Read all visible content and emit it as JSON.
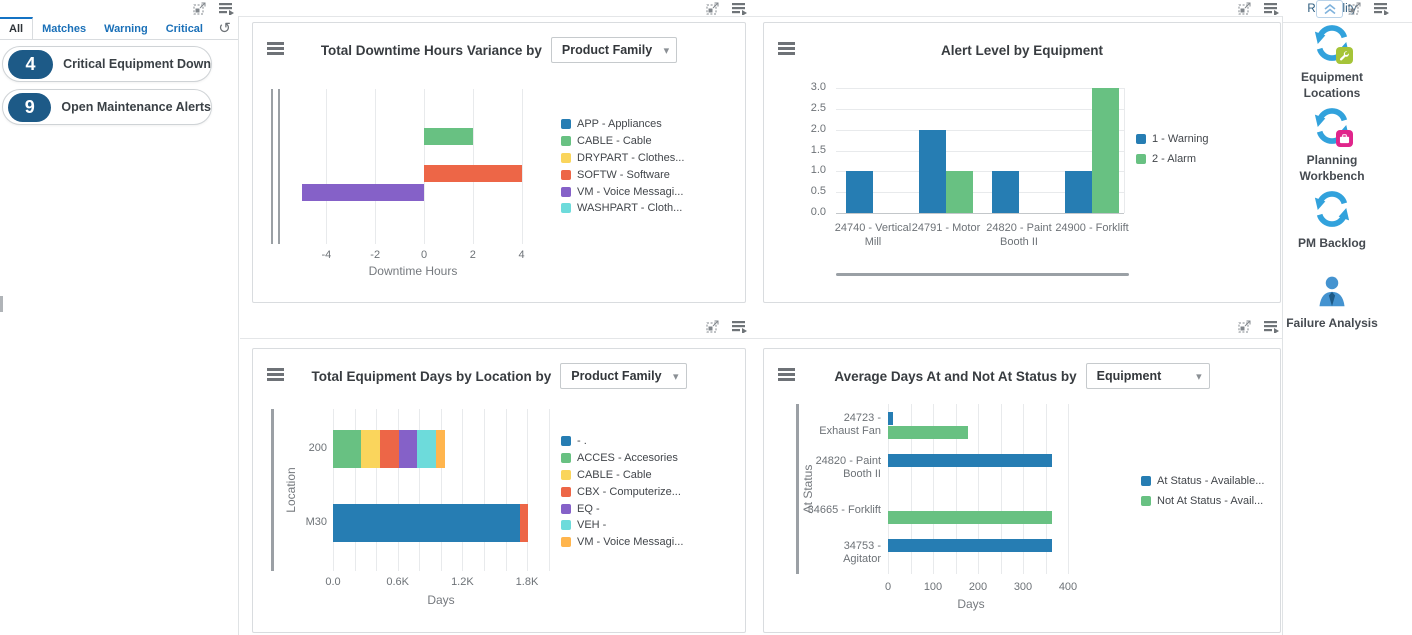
{
  "left_panel": {
    "tabs": [
      "All",
      "Matches",
      "Warning",
      "Critical"
    ],
    "active_tab": "All",
    "cards": [
      {
        "count": "4",
        "label": "Critical Equipment Down"
      },
      {
        "count": "9",
        "label": "Open Maintenance Alerts"
      }
    ]
  },
  "sidebar": {
    "title": "Reliability",
    "items": [
      {
        "label": "Equipment Locations",
        "icon": "cycle-wrench-icon"
      },
      {
        "label": "Planning Workbench",
        "icon": "cycle-briefcase-icon"
      },
      {
        "label": "PM Backlog",
        "icon": "cycle-icon"
      },
      {
        "label": "Failure Analysis",
        "icon": "person-icon"
      }
    ]
  },
  "colors": {
    "accent_blue": "#1473c4",
    "badge_navy": "#1d5a87",
    "link_blue": "#1a70b8",
    "series_blue": "#267db3",
    "series_green": "#68c182"
  },
  "chart_data": [
    {
      "type": "bar",
      "orientation": "horizontal",
      "title": "Total Downtime Hours Variance by",
      "selector": "Product Family",
      "xlabel": "Downtime Hours",
      "xticks": [
        -4,
        -2,
        0,
        2,
        4
      ],
      "xlim": [
        -6,
        4.5
      ],
      "grid": true,
      "legend_position": "right",
      "series": [
        {
          "name": "APP - Appliances",
          "color": "#267db3",
          "value": 0
        },
        {
          "name": "CABLE - Cable",
          "color": "#68c182",
          "value": 2
        },
        {
          "name": "DRYPART - Clothes...",
          "color": "#fad55c",
          "value": 0
        },
        {
          "name": "SOFTW - Software",
          "color": "#ed6647",
          "value": 4
        },
        {
          "name": "VM - Voice Messagi...",
          "color": "#8561c8",
          "value": -5
        },
        {
          "name": "WASHPART - Cloth...",
          "color": "#6ddbdb",
          "value": 0
        }
      ]
    },
    {
      "type": "bar",
      "orientation": "vertical",
      "grouped": true,
      "title": "Alert Level by Equipment",
      "selector": null,
      "categories": [
        "24740 - Vertical Mill",
        "24791 - Motor",
        "24820 - Paint Booth II",
        "24900 - Forklift"
      ],
      "yticks": [
        0,
        0.5,
        1,
        1.5,
        2,
        2.5,
        3
      ],
      "ylim": [
        0,
        3
      ],
      "grid": true,
      "legend_position": "right",
      "series": [
        {
          "name": "1 - Warning",
          "color": "#267db3",
          "values": [
            1,
            2,
            1,
            1
          ]
        },
        {
          "name": "2 - Alarm",
          "color": "#68c182",
          "values": [
            0,
            1,
            0,
            3
          ]
        }
      ]
    },
    {
      "type": "bar",
      "orientation": "horizontal",
      "stacked": true,
      "title": "Total Equipment Days by Location by",
      "selector": "Product Family",
      "xlabel": "Days",
      "ylabel": "Location",
      "categories": [
        "200",
        "M30"
      ],
      "xticks": [
        0,
        600,
        1200,
        1800
      ],
      "xtick_labels": [
        "0.0",
        "0.6K",
        "1.2K",
        "1.8K"
      ],
      "xlim": [
        0,
        2000
      ],
      "grid": true,
      "legend_position": "right",
      "series": [
        {
          "name": "- .",
          "color": "#267db3",
          "values": [
            0,
            1730
          ]
        },
        {
          "name": "ACCES - Accesories",
          "color": "#68c182",
          "values": [
            260,
            0
          ]
        },
        {
          "name": "CABLE - Cable",
          "color": "#fad55c",
          "values": [
            175,
            0
          ]
        },
        {
          "name": "CBX - Computerize...",
          "color": "#ed6647",
          "values": [
            175,
            80
          ]
        },
        {
          "name": "EQ -",
          "color": "#8561c8",
          "values": [
            170,
            0
          ]
        },
        {
          "name": "VEH -",
          "color": "#6ddbdb",
          "values": [
            175,
            0
          ]
        },
        {
          "name": "VM - Voice Messagi...",
          "color": "#ffb54d",
          "values": [
            85,
            0
          ]
        }
      ]
    },
    {
      "type": "bar",
      "orientation": "horizontal",
      "grouped": true,
      "title": "Average Days At and Not At Status by",
      "selector": "Equipment",
      "xlabel": "Days",
      "ylabel": "At Status",
      "categories": [
        "24723 - Exhaust Fan",
        "24820 - Paint Booth II",
        "34665 - Forklift",
        "34753 - Agitator"
      ],
      "xticks": [
        0,
        100,
        200,
        300,
        400
      ],
      "xlim": [
        0,
        440
      ],
      "grid": true,
      "legend_position": "right",
      "series": [
        {
          "name": "At Status - Available...",
          "color": "#267db3",
          "values": [
            10,
            365,
            0,
            365
          ]
        },
        {
          "name": "Not At Status - Avail...",
          "color": "#68c182",
          "values": [
            178,
            0,
            365,
            0
          ]
        }
      ]
    }
  ]
}
